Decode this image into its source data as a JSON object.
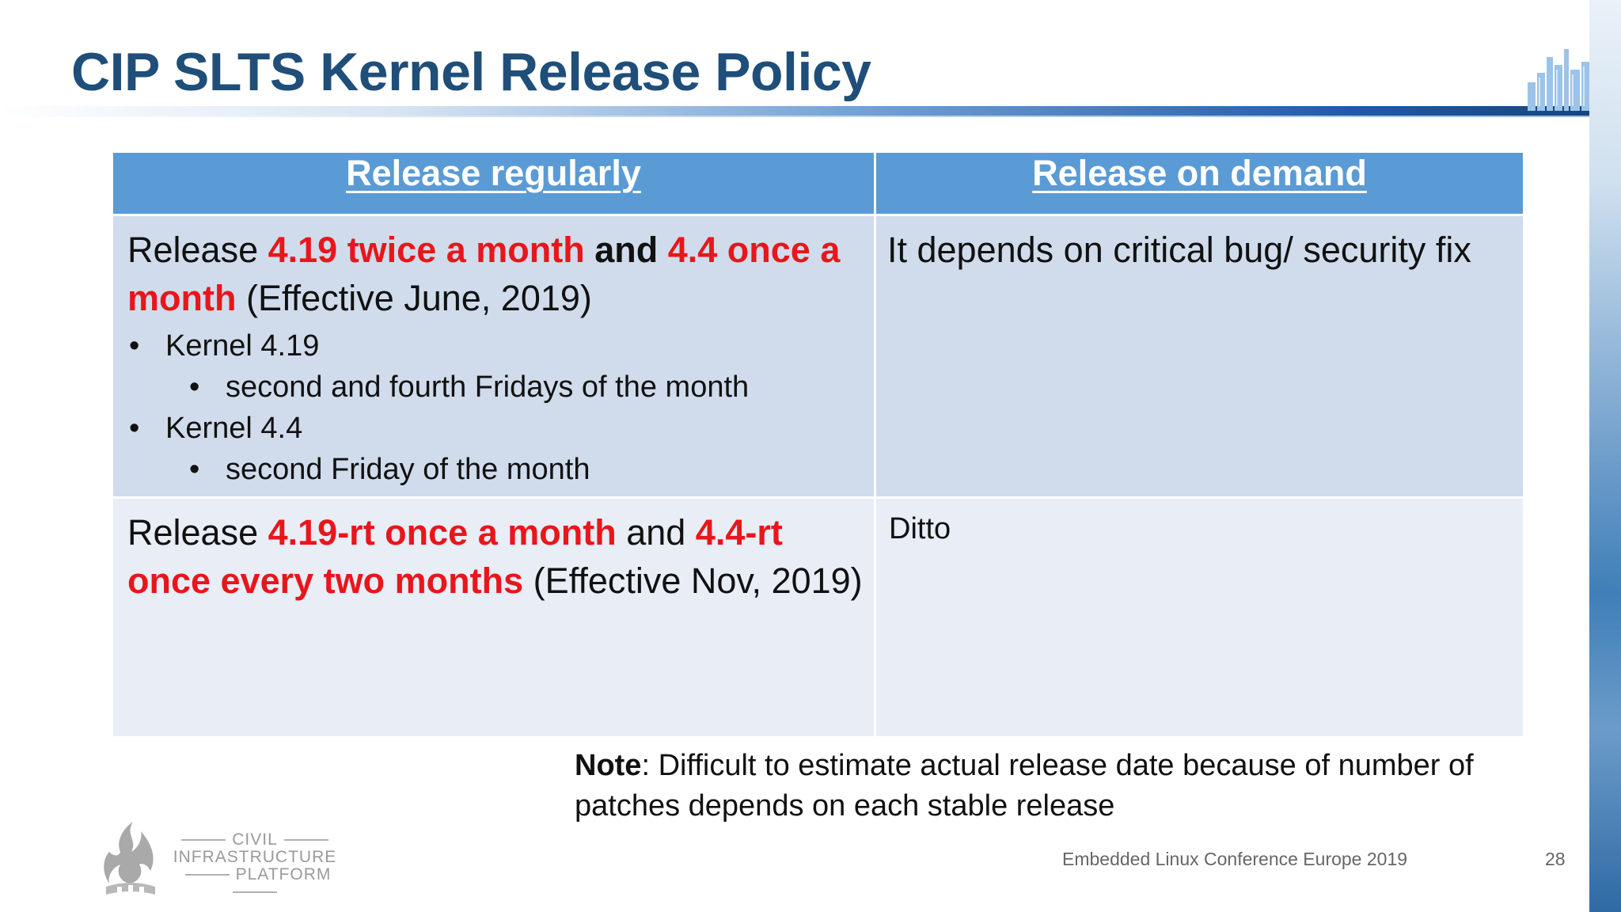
{
  "slide": {
    "title": "CIP SLTS Kernel Release Policy",
    "page_number": "28",
    "footer": "Embedded Linux Conference Europe 2019"
  },
  "table": {
    "headers": [
      "Release regularly",
      "Release on demand"
    ],
    "row1": {
      "left": {
        "intro_1": "Release ",
        "hl_1": "4.19 twice a month",
        "mid": " and ",
        "hl_2": "4.4 once a month",
        "tail": " (Effective June, 2019)",
        "bullets": [
          {
            "label": "Kernel 4.19",
            "sub": "second and fourth Fridays of the month"
          },
          {
            "label": "Kernel 4.4",
            "sub": "second Friday of the month"
          }
        ]
      },
      "right": "It depends on critical bug/ security fix"
    },
    "row2": {
      "left": {
        "intro_1": "Release ",
        "hl_1": "4.19-rt once a month",
        "mid": " and ",
        "hl_2": "4.4-rt once every two months",
        "tail": " (Effective Nov, 2019)"
      },
      "right": "Ditto"
    }
  },
  "note": {
    "label": "Note",
    "text": ": Difficult to estimate actual release date because of number of patches depends on each stable release"
  },
  "logo": {
    "line1": "CIVIL",
    "line2": "INFRASTRUCTURE",
    "line3": "PLATFORM"
  },
  "colors": {
    "title": "#1f4e79",
    "header_bg": "#5b9bd5",
    "row1_bg": "#d0dcec",
    "row2_bg": "#e8edf6",
    "highlight": "#e8161b"
  }
}
